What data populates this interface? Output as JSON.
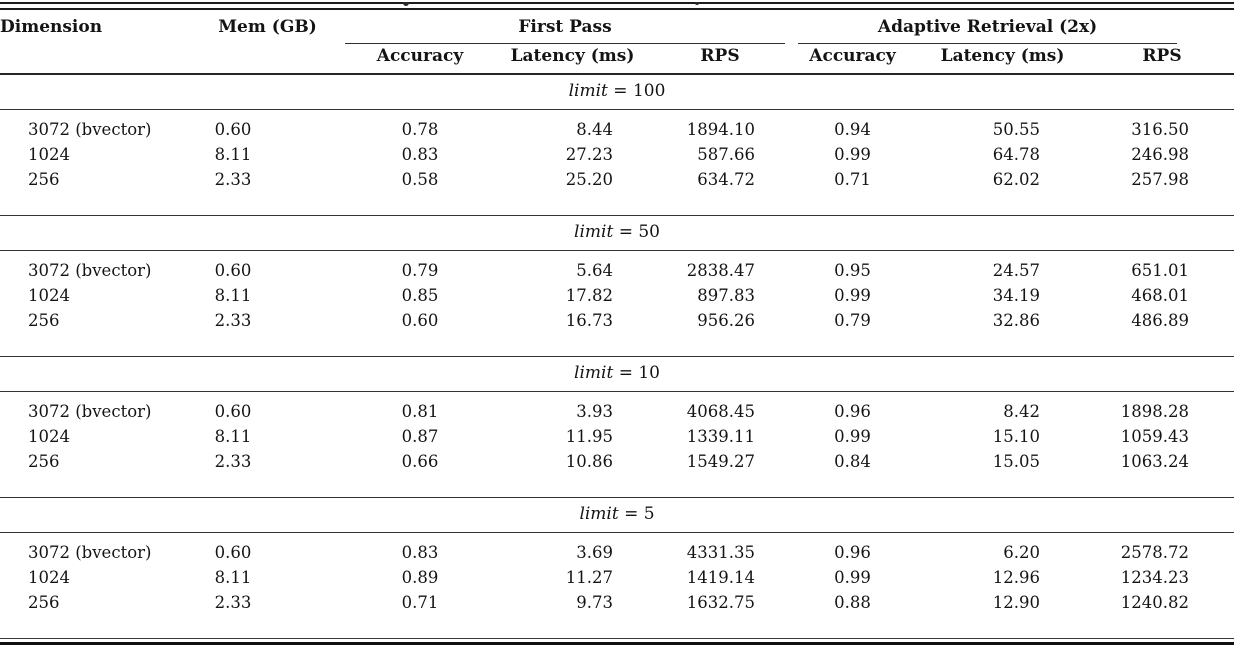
{
  "table": {
    "header": {
      "dimension": "Dimension",
      "mem": "Mem (GB)",
      "group_first_pass": "First Pass",
      "group_adaptive": "Adaptive Retrieval (2x)",
      "sub": {
        "fp_accuracy": "Accuracy",
        "fp_latency": "Latency (ms)",
        "fp_rps": "RPS",
        "ar_accuracy": "Accuracy",
        "ar_latency": "Latency (ms)",
        "ar_rps": "RPS"
      }
    },
    "sections": [
      {
        "label_var": "limit",
        "label_value": "100",
        "rows": [
          {
            "dimension": "3072 (bvector)",
            "mem": "0.60",
            "fp_accuracy": "0.78",
            "fp_latency": "8.44",
            "fp_rps": "1894.10",
            "ar_accuracy": "0.94",
            "ar_latency": "50.55",
            "ar_rps": "316.50"
          },
          {
            "dimension": "1024",
            "mem": "8.11",
            "fp_accuracy": "0.83",
            "fp_latency": "27.23",
            "fp_rps": "587.66",
            "ar_accuracy": "0.99",
            "ar_latency": "64.78",
            "ar_rps": "246.98"
          },
          {
            "dimension": "256",
            "mem": "2.33",
            "fp_accuracy": "0.58",
            "fp_latency": "25.20",
            "fp_rps": "634.72",
            "ar_accuracy": "0.71",
            "ar_latency": "62.02",
            "ar_rps": "257.98"
          }
        ]
      },
      {
        "label_var": "limit",
        "label_value": "50",
        "rows": [
          {
            "dimension": "3072 (bvector)",
            "mem": "0.60",
            "fp_accuracy": "0.79",
            "fp_latency": "5.64",
            "fp_rps": "2838.47",
            "ar_accuracy": "0.95",
            "ar_latency": "24.57",
            "ar_rps": "651.01"
          },
          {
            "dimension": "1024",
            "mem": "8.11",
            "fp_accuracy": "0.85",
            "fp_latency": "17.82",
            "fp_rps": "897.83",
            "ar_accuracy": "0.99",
            "ar_latency": "34.19",
            "ar_rps": "468.01"
          },
          {
            "dimension": "256",
            "mem": "2.33",
            "fp_accuracy": "0.60",
            "fp_latency": "16.73",
            "fp_rps": "956.26",
            "ar_accuracy": "0.79",
            "ar_latency": "32.86",
            "ar_rps": "486.89"
          }
        ]
      },
      {
        "label_var": "limit",
        "label_value": "10",
        "rows": [
          {
            "dimension": "3072 (bvector)",
            "mem": "0.60",
            "fp_accuracy": "0.81",
            "fp_latency": "3.93",
            "fp_rps": "4068.45",
            "ar_accuracy": "0.96",
            "ar_latency": "8.42",
            "ar_rps": "1898.28"
          },
          {
            "dimension": "1024",
            "mem": "8.11",
            "fp_accuracy": "0.87",
            "fp_latency": "11.95",
            "fp_rps": "1339.11",
            "ar_accuracy": "0.99",
            "ar_latency": "15.10",
            "ar_rps": "1059.43"
          },
          {
            "dimension": "256",
            "mem": "2.33",
            "fp_accuracy": "0.66",
            "fp_latency": "10.86",
            "fp_rps": "1549.27",
            "ar_accuracy": "0.84",
            "ar_latency": "15.05",
            "ar_rps": "1063.24"
          }
        ]
      },
      {
        "label_var": "limit",
        "label_value": "5",
        "rows": [
          {
            "dimension": "3072 (bvector)",
            "mem": "0.60",
            "fp_accuracy": "0.83",
            "fp_latency": "3.69",
            "fp_rps": "4331.35",
            "ar_accuracy": "0.96",
            "ar_latency": "6.20",
            "ar_rps": "2578.72"
          },
          {
            "dimension": "1024",
            "mem": "8.11",
            "fp_accuracy": "0.89",
            "fp_latency": "11.27",
            "fp_rps": "1419.14",
            "ar_accuracy": "0.99",
            "ar_latency": "12.96",
            "ar_rps": "1234.23"
          },
          {
            "dimension": "256",
            "mem": "2.33",
            "fp_accuracy": "0.71",
            "fp_latency": "9.73",
            "fp_rps": "1632.75",
            "ar_accuracy": "0.88",
            "ar_latency": "12.90",
            "ar_rps": "1240.82"
          }
        ]
      }
    ]
  }
}
